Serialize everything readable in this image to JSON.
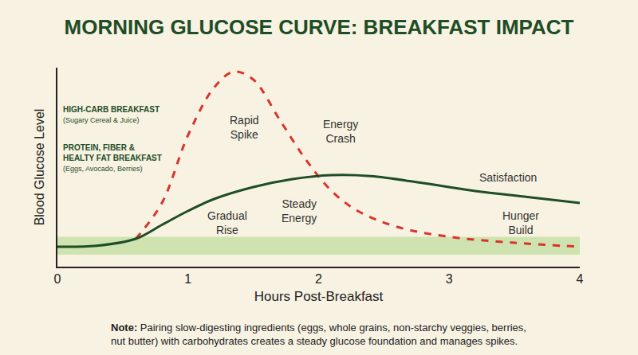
{
  "chart_data": {
    "type": "line",
    "title": "MORNING GLUCOSE CURVE: BREAKFAST IMPACT",
    "x_label": "Hours Post-Breakfast",
    "y_label": "Blood Glucose Level",
    "xlim": [
      0,
      4
    ],
    "xticks": [
      0,
      1,
      2,
      3,
      4
    ],
    "ylim": [
      0,
      100
    ],
    "tick_labels": "x",
    "grid": false,
    "band": [
      6,
      15
    ],
    "series": [
      {
        "name": "HIGH-CARB BREAKFAST",
        "detail": "(Sugary Cereal & Juice)",
        "color": "#d9342b",
        "line_style": "dashed",
        "x": [
          0.6,
          0.8,
          1.0,
          1.2,
          1.35,
          1.5,
          1.7,
          1.9,
          2.1,
          2.3,
          2.6,
          3.0,
          3.5,
          4.0
        ],
        "values": [
          14,
          32,
          66,
          90,
          98,
          94,
          74,
          54,
          38,
          28,
          20,
          15,
          12,
          10
        ]
      },
      {
        "name": "PROTEIN, FIBER & HEALTY FAT BREAKFAST",
        "detail": "(Eggs, Avocado, Berries)",
        "color": "#1e4d26",
        "line_style": "solid",
        "x": [
          0,
          0.3,
          0.6,
          0.8,
          1.0,
          1.2,
          1.5,
          1.8,
          2.1,
          2.4,
          2.8,
          3.2,
          3.6,
          4.0
        ],
        "values": [
          10,
          10.5,
          14,
          21,
          28,
          34,
          40,
          44,
          46,
          45.5,
          42,
          38,
          35,
          32
        ]
      }
    ],
    "annotations": [
      "Rapid Spike",
      "Energy Crash",
      "Gradual Rise",
      "Steady Energy",
      "Satisfaction",
      "Hunger Build"
    ],
    "note": "Note: Pairing slow-digesting ingredients (eggs, whole grains, non-starchy veggies, berries, nut butter) with carbohydrates creates a steady glucose foundation and manages spikes."
  }
}
